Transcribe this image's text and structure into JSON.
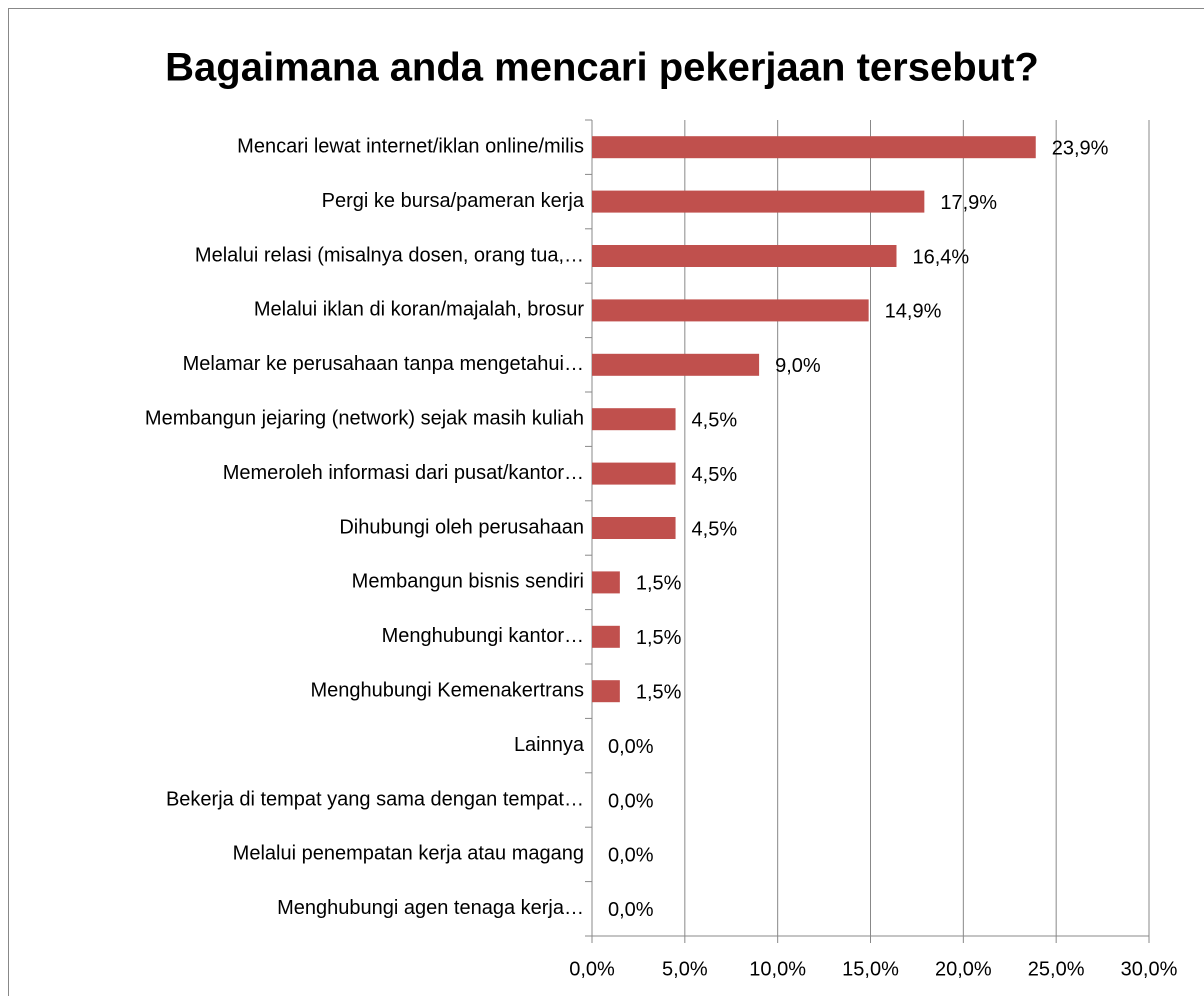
{
  "chart_data": {
    "type": "bar",
    "orientation": "horizontal",
    "title": "Bagaimana anda mencari pekerjaan tersebut?",
    "categories": [
      "Mencari lewat internet/iklan online/milis",
      "Pergi ke bursa/pameran kerja",
      "Melalui relasi (misalnya dosen, orang tua,…",
      "Melalui iklan di koran/majalah, brosur",
      "Melamar ke perusahaan tanpa mengetahui…",
      "Membangun jejaring (network) sejak masih kuliah",
      "Memeroleh informasi dari pusat/kantor…",
      "Dihubungi oleh perusahaan",
      "Membangun bisnis sendiri",
      "Menghubungi kantor…",
      "Menghubungi Kemenakertrans",
      "Lainnya",
      "Bekerja di tempat yang sama dengan tempat…",
      "Melalui penempatan kerja atau magang",
      "Menghubungi agen tenaga kerja…"
    ],
    "values": [
      23.9,
      17.9,
      16.4,
      14.9,
      9.0,
      4.5,
      4.5,
      4.5,
      1.5,
      1.5,
      1.5,
      0,
      0,
      0,
      0
    ],
    "value_labels": [
      "23,9%",
      "17,9%",
      "16,4%",
      "14,9%",
      "9,0%",
      "4,5%",
      "4,5%",
      "4,5%",
      "1,5%",
      "1,5%",
      "1,5%",
      "0,0%",
      "0,0%",
      "0,0%",
      "0,0%"
    ],
    "color": "#c0504d",
    "xlim": [
      0,
      30
    ],
    "xticks": [
      {
        "value": 0,
        "label": "0,0%"
      },
      {
        "value": 5,
        "label": "5,0%"
      },
      {
        "value": 10,
        "label": "10,0%"
      },
      {
        "value": 15,
        "label": "15,0%"
      },
      {
        "value": 20,
        "label": "20,0%"
      },
      {
        "value": 25,
        "label": "25,0%"
      },
      {
        "value": 30,
        "label": "30,0%"
      }
    ],
    "grid": true
  }
}
